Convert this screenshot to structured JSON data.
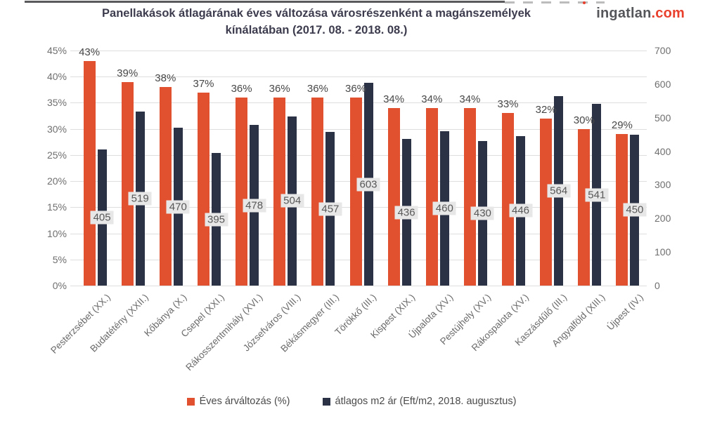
{
  "header": {
    "title_line1": "Panellakások átlagárának éves változása városrészenként a magánszemélyek",
    "title_line2": "kínálatában (2017. 08. - 2018. 08.)",
    "logo_name": "ingatlan",
    "logo_tld": ".com"
  },
  "chart_data": {
    "type": "bar",
    "title": "Panellakások átlagárának éves változása városrészenként a magánszemélyek kínálatában (2017. 08. - 2018. 08.)",
    "categories": [
      "Pesterzsébet (XX.)",
      "Budatétény (XXII.)",
      "Kőbánya (X.)",
      "Csepel (XXI.)",
      "Rákosszentmihály (XVI.)",
      "Józsefváros (VIII.)",
      "Békásmegyer (III.)",
      "Törökkő (III.)",
      "Kispest (XIX.)",
      "Újpalota (XV.)",
      "Pestújhely (XV.)",
      "Rákospalota (XV.)",
      "Kaszásdűlő (III.)",
      "Angyalföld (XIII.)",
      "Újpest (IV.)"
    ],
    "series": [
      {
        "name": "Éves árváltozás (%)",
        "axis": "left",
        "color": "#e2512f",
        "values": [
          43,
          39,
          38,
          37,
          36,
          36,
          36,
          36,
          34,
          34,
          34,
          33,
          32,
          30,
          29
        ],
        "labels": [
          "43%",
          "39%",
          "38%",
          "37%",
          "36%",
          "36%",
          "36%",
          "36%",
          "34%",
          "34%",
          "34%",
          "33%",
          "32%",
          "30%",
          "29%"
        ]
      },
      {
        "name": "átlagos m2 ár (Eft/m2, 2018. augusztus)",
        "axis": "right",
        "color": "#2c3246",
        "values": [
          405,
          519,
          470,
          395,
          478,
          504,
          457,
          603,
          436,
          460,
          430,
          446,
          564,
          541,
          450
        ]
      }
    ],
    "left_axis": {
      "ticks": [
        "45%",
        "40%",
        "35%",
        "30%",
        "25%",
        "20%",
        "15%",
        "10%",
        "5%",
        "0%"
      ],
      "min": 0,
      "max": 45
    },
    "right_axis": {
      "ticks": [
        "700",
        "600",
        "500",
        "400",
        "300",
        "200",
        "100",
        "0"
      ],
      "min": 0,
      "max": 700
    },
    "grid": true,
    "legend_position": "bottom"
  }
}
